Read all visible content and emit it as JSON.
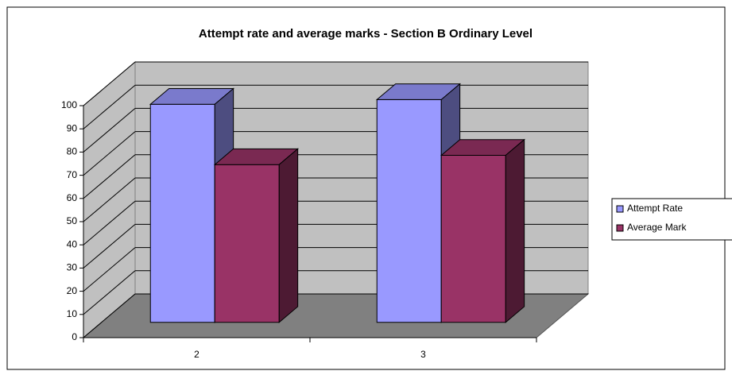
{
  "chart_data": {
    "type": "bar3d",
    "title": "Attempt rate and average marks - Section B Ordinary Level",
    "categories": [
      "2",
      "3"
    ],
    "series": [
      {
        "name": "Attempt Rate",
        "color": "#9999ff",
        "values": [
          94,
          96
        ]
      },
      {
        "name": "Average Mark",
        "color": "#993366",
        "values": [
          68,
          72
        ]
      }
    ],
    "ylim": [
      0,
      100
    ],
    "yticks": [
      0,
      10,
      20,
      30,
      40,
      50,
      60,
      70,
      80,
      90,
      100
    ],
    "grid": true,
    "legend": "right"
  }
}
